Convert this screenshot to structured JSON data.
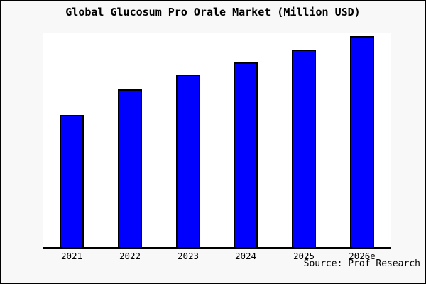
{
  "title": "Global Glucosum Pro Orale Market (Million USD)",
  "source_credit": "Source: Prof Research",
  "colors": {
    "bar_fill": "#0000ff",
    "bar_outline": "#000000",
    "plot_background": "#ffffff",
    "page_background": "#f8f8f8",
    "frame_border": "#000000",
    "axis": "#000000",
    "text": "#000000"
  },
  "chart_data": {
    "type": "bar",
    "title": "Global Glucosum Pro Orale Market (Million USD)",
    "categories": [
      "2021",
      "2022",
      "2023",
      "2024",
      "2025",
      "2026e"
    ],
    "values": [
      188,
      224,
      245,
      262,
      280,
      299
    ],
    "value_note": "y-axis has no ticks or labels; values are relative magnitudes estimated from bar heights (max bar = 299)",
    "xlabel": "",
    "ylabel": "",
    "ylim": [
      0,
      304
    ],
    "grid": false,
    "legend": false,
    "y_axis_visible": false,
    "annotation": "Source: Prof Research"
  }
}
